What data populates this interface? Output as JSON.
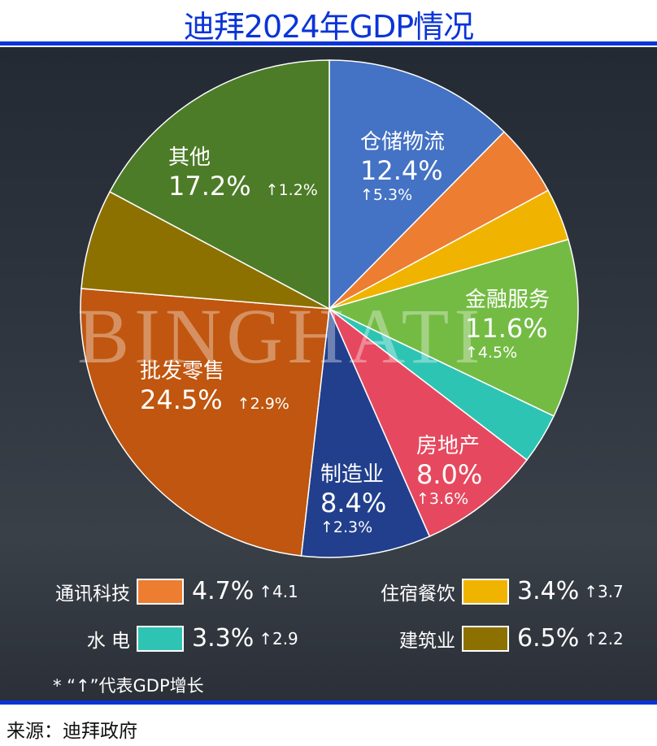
{
  "title": "迪拜2024年GDP情况",
  "watermark": "BINGHATI",
  "chart_data": {
    "type": "pie",
    "title": "迪拜2024年GDP情况",
    "slices": [
      {
        "name": "仓储物流",
        "value": 12.4,
        "label": "12.4%",
        "growth": "↑5.3%",
        "color": "#4472c4",
        "labeled": true
      },
      {
        "name": "通讯科技",
        "value": 4.7,
        "label": "4.7%",
        "growth": "↑4.1",
        "color": "#ed7d31",
        "labeled": false
      },
      {
        "name": "住宿餐饮",
        "value": 3.4,
        "label": "3.4%",
        "growth": "↑3.7",
        "color": "#f0b400",
        "labeled": false
      },
      {
        "name": "金融服务",
        "value": 11.6,
        "label": "11.6%",
        "growth": "↑4.5%",
        "color": "#74bb44",
        "labeled": true
      },
      {
        "name": "水 电",
        "value": 3.3,
        "label": "3.3%",
        "growth": "↑2.9",
        "color": "#2ec4b3",
        "labeled": false
      },
      {
        "name": "房地产",
        "value": 8.0,
        "label": "8.0%",
        "growth": "↑3.6%",
        "color": "#e6495f",
        "labeled": true
      },
      {
        "name": "制造业",
        "value": 8.4,
        "label": "8.4%",
        "growth": "↑2.3%",
        "color": "#213f8c",
        "labeled": true
      },
      {
        "name": "批发零售",
        "value": 24.5,
        "label": "24.5%",
        "growth": "↑2.9%",
        "color": "#c0560f",
        "labeled": true
      },
      {
        "name": "建筑业",
        "value": 6.5,
        "label": "6.5%",
        "growth": "↑2.2",
        "color": "#8d7100",
        "labeled": false
      },
      {
        "name": "其他",
        "value": 17.2,
        "label": "17.2%",
        "growth": "↑1.2%",
        "color": "#4d7c28",
        "labeled": true
      }
    ],
    "note": "* “↑”代表GDP增长"
  },
  "source": "来源：迪拜政府"
}
